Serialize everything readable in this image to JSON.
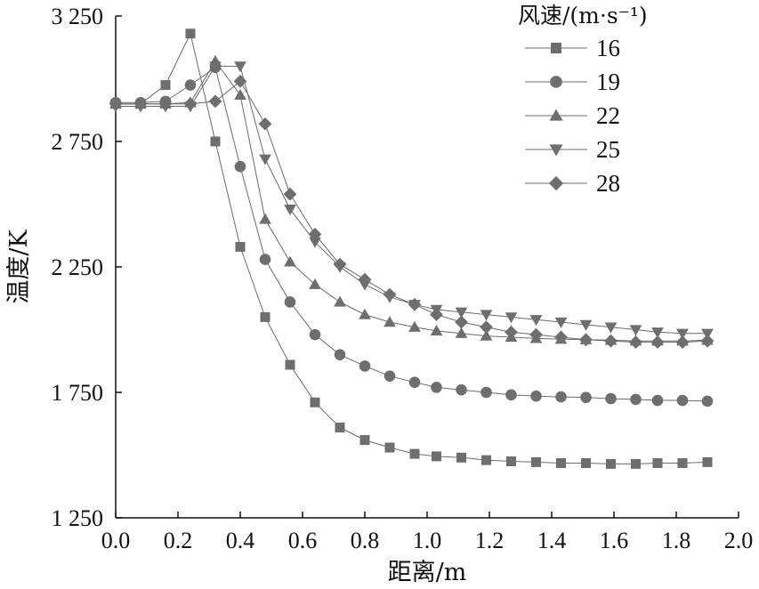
{
  "chart_data": {
    "type": "line",
    "xlabel": "距离/m",
    "ylabel": "温度/K",
    "xlim": [
      0.0,
      2.0
    ],
    "ylim": [
      1250,
      3250
    ],
    "x_ticks": [
      "0.0",
      "0.2",
      "0.4",
      "0.6",
      "0.8",
      "1.0",
      "1.2",
      "1.4",
      "1.6",
      "1.8",
      "2.0"
    ],
    "y_ticks": [
      "1 250",
      "1 750",
      "2 250",
      "2 750",
      "3 250"
    ],
    "y_tick_values": [
      1250,
      1750,
      2250,
      2750,
      3250
    ],
    "x_tick_values": [
      0.0,
      0.2,
      0.4,
      0.6,
      0.8,
      1.0,
      1.2,
      1.4,
      1.6,
      1.8,
      2.0
    ],
    "legend": {
      "title": "风速/(m·s⁻¹)",
      "placement": "top-right"
    },
    "grid": false,
    "series": [
      {
        "name": "16",
        "marker": "square",
        "points": [
          [
            0.0,
            2900
          ],
          [
            0.08,
            2900
          ],
          [
            0.16,
            2975
          ],
          [
            0.24,
            3180
          ],
          [
            0.32,
            2750
          ],
          [
            0.4,
            2330
          ],
          [
            0.48,
            2050
          ],
          [
            0.56,
            1860
          ],
          [
            0.64,
            1710
          ],
          [
            0.72,
            1610
          ],
          [
            0.8,
            1560
          ],
          [
            0.88,
            1530
          ],
          [
            0.96,
            1505
          ],
          [
            1.03,
            1495
          ],
          [
            1.11,
            1490
          ],
          [
            1.19,
            1480
          ],
          [
            1.27,
            1475
          ],
          [
            1.35,
            1472
          ],
          [
            1.43,
            1468
          ],
          [
            1.51,
            1468
          ],
          [
            1.59,
            1465
          ],
          [
            1.67,
            1465
          ],
          [
            1.74,
            1468
          ],
          [
            1.82,
            1468
          ],
          [
            1.9,
            1472
          ]
        ]
      },
      {
        "name": "19",
        "marker": "circle",
        "points": [
          [
            0.0,
            2905
          ],
          [
            0.08,
            2905
          ],
          [
            0.16,
            2910
          ],
          [
            0.24,
            2975
          ],
          [
            0.32,
            3045
          ],
          [
            0.4,
            2650
          ],
          [
            0.48,
            2280
          ],
          [
            0.56,
            2110
          ],
          [
            0.64,
            1980
          ],
          [
            0.72,
            1900
          ],
          [
            0.8,
            1855
          ],
          [
            0.88,
            1815
          ],
          [
            0.96,
            1790
          ],
          [
            1.03,
            1770
          ],
          [
            1.11,
            1760
          ],
          [
            1.19,
            1750
          ],
          [
            1.27,
            1740
          ],
          [
            1.35,
            1735
          ],
          [
            1.43,
            1732
          ],
          [
            1.51,
            1730
          ],
          [
            1.59,
            1725
          ],
          [
            1.67,
            1722
          ],
          [
            1.74,
            1718
          ],
          [
            1.82,
            1718
          ],
          [
            1.9,
            1715
          ]
        ]
      },
      {
        "name": "22",
        "marker": "triangle-up",
        "points": [
          [
            0.0,
            2900
          ],
          [
            0.08,
            2900
          ],
          [
            0.16,
            2900
          ],
          [
            0.24,
            2905
          ],
          [
            0.32,
            3070
          ],
          [
            0.4,
            2935
          ],
          [
            0.48,
            2440
          ],
          [
            0.56,
            2270
          ],
          [
            0.64,
            2180
          ],
          [
            0.72,
            2110
          ],
          [
            0.8,
            2060
          ],
          [
            0.88,
            2030
          ],
          [
            0.96,
            2010
          ],
          [
            1.03,
            1995
          ],
          [
            1.11,
            1985
          ],
          [
            1.19,
            1975
          ],
          [
            1.27,
            1970
          ],
          [
            1.35,
            1965
          ],
          [
            1.43,
            1962
          ],
          [
            1.51,
            1960
          ],
          [
            1.59,
            1958
          ],
          [
            1.67,
            1955
          ],
          [
            1.74,
            1955
          ],
          [
            1.82,
            1955
          ],
          [
            1.9,
            1958
          ]
        ]
      },
      {
        "name": "25",
        "marker": "triangle-down",
        "points": [
          [
            0.0,
            2890
          ],
          [
            0.08,
            2890
          ],
          [
            0.16,
            2890
          ],
          [
            0.24,
            2890
          ],
          [
            0.32,
            3050
          ],
          [
            0.4,
            3050
          ],
          [
            0.48,
            2680
          ],
          [
            0.56,
            2480
          ],
          [
            0.64,
            2350
          ],
          [
            0.72,
            2250
          ],
          [
            0.8,
            2180
          ],
          [
            0.88,
            2130
          ],
          [
            0.96,
            2100
          ],
          [
            1.03,
            2080
          ],
          [
            1.11,
            2070
          ],
          [
            1.19,
            2060
          ],
          [
            1.27,
            2050
          ],
          [
            1.35,
            2040
          ],
          [
            1.43,
            2030
          ],
          [
            1.51,
            2020
          ],
          [
            1.59,
            2010
          ],
          [
            1.67,
            2000
          ],
          [
            1.74,
            1990
          ],
          [
            1.82,
            1985
          ],
          [
            1.9,
            1985
          ]
        ]
      },
      {
        "name": "28",
        "marker": "diamond",
        "points": [
          [
            0.0,
            2900
          ],
          [
            0.08,
            2900
          ],
          [
            0.16,
            2900
          ],
          [
            0.24,
            2900
          ],
          [
            0.32,
            2910
          ],
          [
            0.4,
            2990
          ],
          [
            0.48,
            2820
          ],
          [
            0.56,
            2540
          ],
          [
            0.64,
            2380
          ],
          [
            0.72,
            2260
          ],
          [
            0.8,
            2200
          ],
          [
            0.88,
            2140
          ],
          [
            0.96,
            2100
          ],
          [
            1.03,
            2060
          ],
          [
            1.11,
            2030
          ],
          [
            1.19,
            2010
          ],
          [
            1.27,
            1990
          ],
          [
            1.35,
            1980
          ],
          [
            1.43,
            1970
          ],
          [
            1.51,
            1960
          ],
          [
            1.59,
            1955
          ],
          [
            1.67,
            1950
          ],
          [
            1.74,
            1950
          ],
          [
            1.82,
            1950
          ],
          [
            1.9,
            1955
          ]
        ]
      }
    ]
  }
}
